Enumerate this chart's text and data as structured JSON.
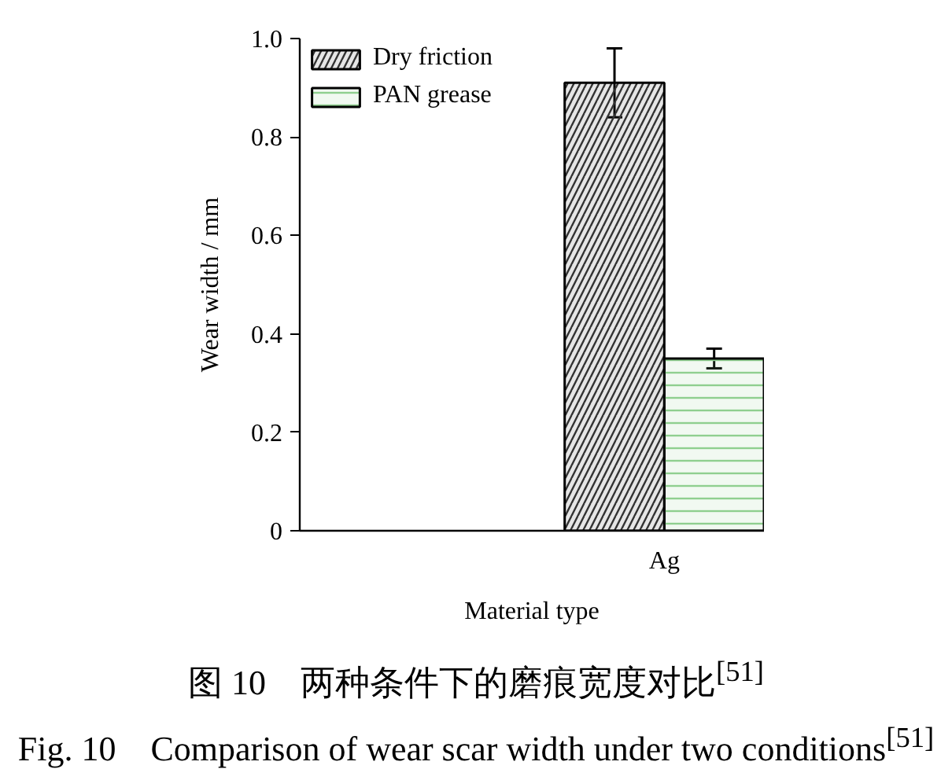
{
  "chart_data": {
    "type": "bar",
    "categories": [
      null,
      "Ag"
    ],
    "series": [
      {
        "name": "Dry friction",
        "color": "#333333",
        "values": [
          null,
          0.91
        ],
        "errors": [
          null,
          0.07
        ]
      },
      {
        "name": "PAN grease",
        "color": "#8fcf8f",
        "values": [
          null,
          0.35
        ],
        "errors": [
          null,
          0.02
        ]
      }
    ],
    "xlabel": "Material type",
    "ylabel": "Wear width / mm",
    "ylim": [
      0,
      1.0
    ],
    "yticks": [
      0,
      0.2,
      0.4,
      0.6,
      0.8,
      {
        "value": 1.0,
        "label": "1.0"
      }
    ],
    "legend": "top left",
    "annotations": [
      "图 10　两种条件下的磨痕宽度对比$^{[51]}$",
      "Fig. 10　Comparison of wear scar width under two conditions$^{[51]}$"
    ]
  }
}
